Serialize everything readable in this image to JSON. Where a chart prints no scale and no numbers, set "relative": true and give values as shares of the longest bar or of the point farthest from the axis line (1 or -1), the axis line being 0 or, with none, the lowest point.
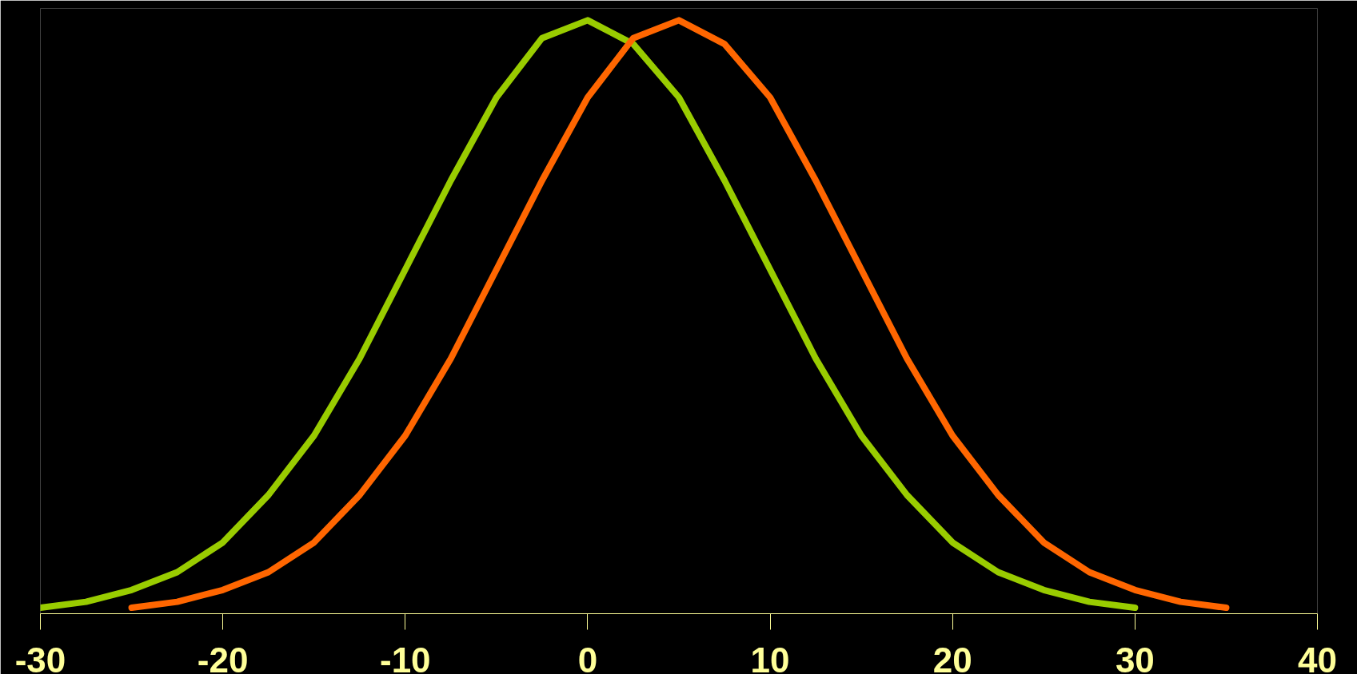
{
  "chart_data": {
    "type": "line",
    "relative": true,
    "xlim": [
      -30,
      40
    ],
    "xticks": [
      -30,
      -20,
      -10,
      0,
      10,
      20,
      30,
      40
    ],
    "grid": false,
    "marker": "none",
    "line_style": "solid",
    "series": [
      {
        "color": "#99cc00",
        "x": [
          -30,
          -27.5,
          -25,
          -22.5,
          -20,
          -17.5,
          -15,
          -12.5,
          -10,
          -7.5,
          -5,
          -2.5,
          0,
          2.5,
          5,
          7.5,
          10,
          12.5,
          15,
          17.5,
          20,
          22.5,
          25,
          27.5,
          30
        ],
        "values": [
          0.01,
          0.02,
          0.04,
          0.07,
          0.12,
          0.2,
          0.3,
          0.43,
          0.58,
          0.73,
          0.87,
          0.97,
          1.0,
          0.96,
          0.87,
          0.73,
          0.58,
          0.43,
          0.3,
          0.2,
          0.12,
          0.07,
          0.04,
          0.02,
          0.01
        ]
      },
      {
        "color": "#ff6600",
        "x": [
          -25,
          -22.5,
          -20,
          -17.5,
          -15,
          -12.5,
          -10,
          -7.5,
          -5,
          -2.5,
          0,
          2.5,
          5,
          7.5,
          10,
          12.5,
          15,
          17.5,
          20,
          22.5,
          25,
          27.5,
          30,
          32.5,
          35
        ],
        "values": [
          0.01,
          0.02,
          0.04,
          0.07,
          0.12,
          0.2,
          0.3,
          0.43,
          0.58,
          0.73,
          0.87,
          0.97,
          1.0,
          0.96,
          0.87,
          0.73,
          0.58,
          0.43,
          0.3,
          0.2,
          0.12,
          0.07,
          0.04,
          0.02,
          0.01
        ]
      }
    ]
  }
}
